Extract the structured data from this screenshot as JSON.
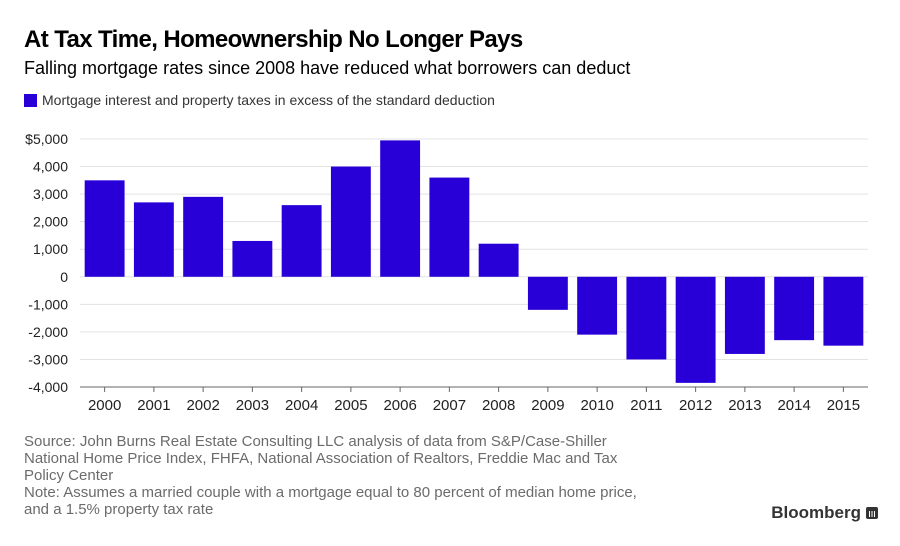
{
  "header": {
    "title": "At Tax Time, Homeownership No Longer Pays",
    "subtitle": "Falling mortgage rates since 2008 have reduced what borrowers can deduct"
  },
  "legend": {
    "label": "Mortgage interest and property taxes in excess of the standard deduction",
    "color": "#2800d7"
  },
  "chart_data": {
    "type": "bar",
    "title": "At Tax Time, Homeownership No Longer Pays",
    "subtitle": "Falling mortgage rates since 2008 have reduced what borrowers can deduct",
    "xlabel": "",
    "ylabel": "",
    "categories": [
      "2000",
      "2001",
      "2002",
      "2003",
      "2004",
      "2005",
      "2006",
      "2007",
      "2008",
      "2009",
      "2010",
      "2011",
      "2012",
      "2013",
      "2014",
      "2015"
    ],
    "series": [
      {
        "name": "Mortgage interest and property taxes in excess of the standard deduction",
        "color": "#2800d7",
        "values": [
          3500,
          2700,
          2900,
          1300,
          2600,
          4000,
          4950,
          3600,
          1200,
          -1200,
          -2100,
          -3000,
          -3850,
          -2800,
          -2300,
          -2500
        ]
      }
    ],
    "ylim": [
      -4000,
      5000
    ],
    "yticks": [
      -4000,
      -3000,
      -2000,
      -1000,
      0,
      1000,
      2000,
      3000,
      4000,
      5000
    ],
    "ytick_labels": [
      "-4,000",
      "-3,000",
      "-2,000",
      "-1,000",
      "0",
      "1,000",
      "2,000",
      "3,000",
      "4,000",
      "$5,000"
    ],
    "grid": true,
    "legend_position": "top-left"
  },
  "footer": {
    "source_lines": [
      "Source: John Burns Real Estate Consulting LLC analysis of data from S&P/Case-Shiller",
      "National Home Price Index, FHFA, National Association of Realtors, Freddie Mac and Tax",
      "Policy Center",
      "Note: Assumes a married couple with a mortgage equal to 80 percent of median home price,",
      "and a 1.5% property tax rate"
    ],
    "brand": "Bloomberg"
  }
}
